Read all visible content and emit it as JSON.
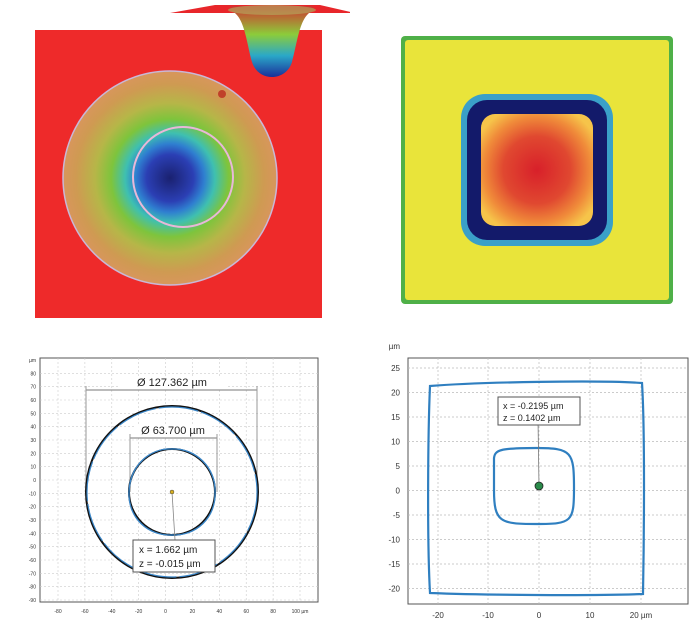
{
  "top_left": {
    "description_colors": {
      "background": "#e8262a",
      "ring_outer": "#c8a26a",
      "mid": "#7fbf3f",
      "core": "#1e2a8c"
    }
  },
  "top_right": {
    "colors": {
      "background": "#e8e23a",
      "ring": "#101860",
      "core": "#e03020"
    }
  },
  "bottom_left": {
    "unit": "µm",
    "x_ticks": [
      "-80",
      "-60",
      "-40",
      "-20",
      "0",
      "20",
      "40",
      "60",
      "80",
      "100 µm"
    ],
    "y_ticks": [
      "µm",
      "80",
      "70",
      "60",
      "50",
      "40",
      "30",
      "20",
      "10",
      "0",
      "-10",
      "-20",
      "-30",
      "-40",
      "-50",
      "-60",
      "-70",
      "-80",
      "-90"
    ],
    "outer_label": "Ø 127.362 µm",
    "inner_label": "Ø 63.700 µm",
    "readout_x": "x = 1.662 µm",
    "readout_z": "z = -0.015 µm"
  },
  "bottom_right": {
    "x_ticks": [
      "-20",
      "-10",
      "0",
      "10",
      "20 µm"
    ],
    "y_ticks": [
      "µm",
      "25",
      "20",
      "15",
      "10",
      "5",
      "0",
      "-5",
      "-10",
      "-15",
      "-20"
    ],
    "readout_x": "x = -0.2195 µm",
    "readout_z": "z = 0.1402 µm"
  }
}
